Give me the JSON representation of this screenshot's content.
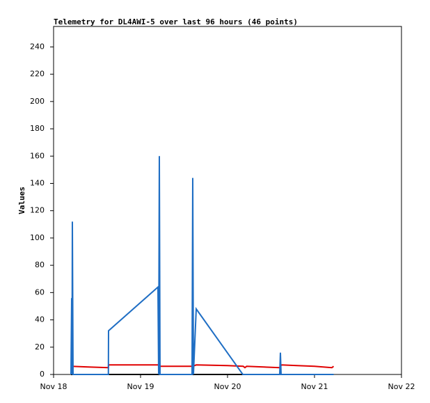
{
  "chart_data": {
    "type": "line",
    "title": "Telemetry for DL4AWI-5 over last 96 hours (46 points)",
    "y_label": "Values",
    "xlim": [
      18,
      22
    ],
    "xticks": [
      {
        "value": 18,
        "label": "Nov 18"
      },
      {
        "value": 19,
        "label": "Nov 19"
      },
      {
        "value": 20,
        "label": "Nov 20"
      },
      {
        "value": 21,
        "label": "Nov 21"
      },
      {
        "value": 22,
        "label": "Nov 22"
      }
    ],
    "ylim": [
      0,
      255
    ],
    "yticks": [
      0,
      20,
      40,
      60,
      80,
      100,
      120,
      140,
      160,
      180,
      200,
      220,
      240
    ],
    "grid": false,
    "series": [
      {
        "color": "#000000",
        "x": [
          18.2,
          21.22
        ],
        "values": [
          0,
          0
        ]
      },
      {
        "color": "#e00000",
        "x": [
          18.2,
          18.4,
          18.63,
          18.632,
          19.2,
          19.22,
          19.6,
          19.64,
          20.0,
          20.18,
          20.2,
          20.22,
          20.6,
          20.62,
          20.8,
          21.0,
          21.2,
          21.22
        ],
        "values": [
          6,
          5.5,
          5,
          7,
          7,
          6,
          6,
          7,
          6.5,
          6,
          5,
          6,
          5,
          7,
          6.5,
          6,
          5,
          6
        ]
      },
      {
        "color": "#1f6ec4",
        "x": [
          18.2,
          18.208,
          18.212,
          18.216,
          18.224,
          18.63,
          18.632,
          19.2,
          19.208,
          19.216,
          19.224,
          19.592,
          19.6,
          19.608,
          19.64,
          20.176,
          20.6,
          20.608,
          20.616,
          21.22
        ],
        "values": [
          0,
          56,
          0,
          112,
          0,
          0,
          32,
          64,
          0,
          160,
          0,
          0,
          144,
          0,
          48,
          0,
          0,
          16,
          0,
          0
        ]
      }
    ]
  }
}
